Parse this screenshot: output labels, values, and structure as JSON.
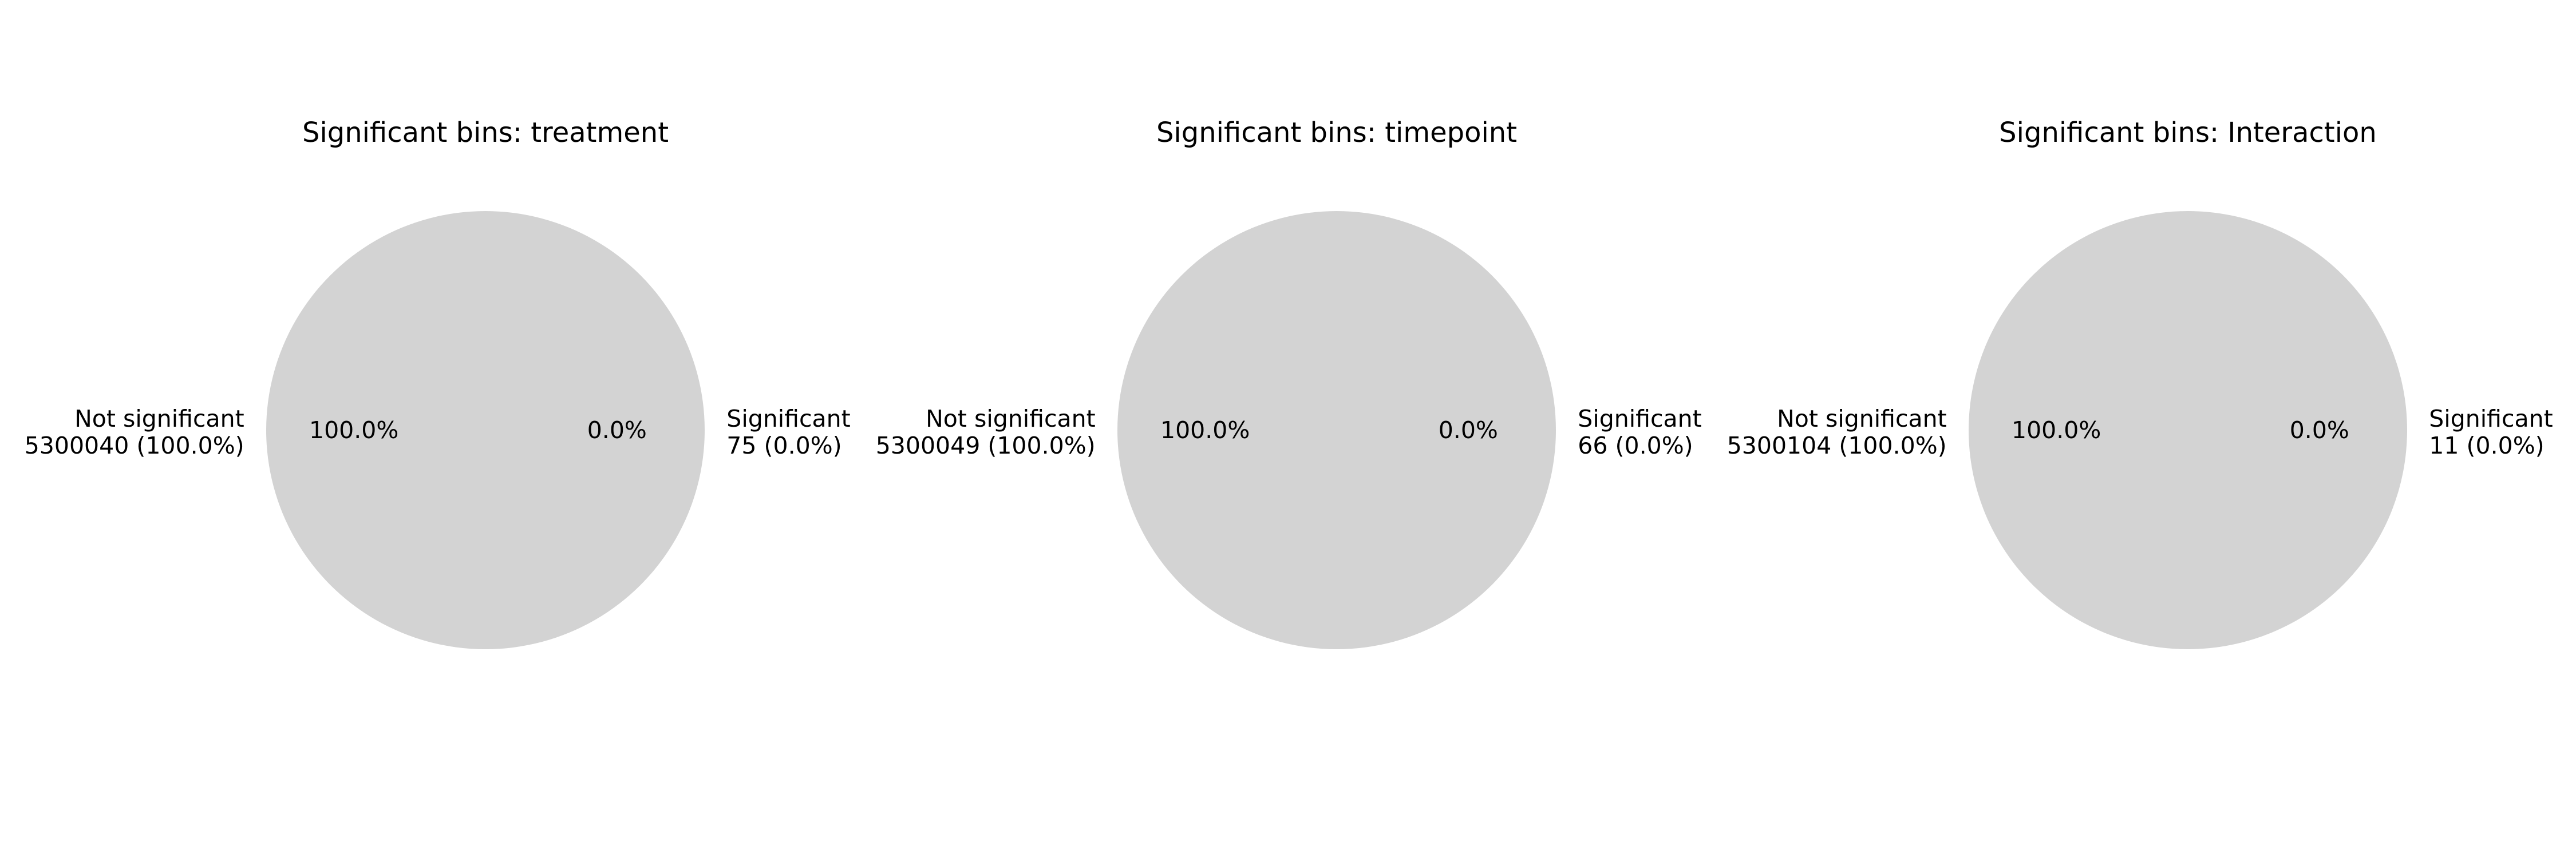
{
  "chart_data": [
    {
      "type": "pie",
      "title": "Significant bins: treatment",
      "slices": [
        {
          "name": "Not significant",
          "value": 5300040,
          "label_value": "5300040 (100.0%)",
          "autopct": "100.0%",
          "color": "#d3d3d3"
        },
        {
          "name": "Significant",
          "value": 75,
          "label_value": "75 (0.0%)",
          "autopct": "0.0%",
          "color": "#d3d3d3"
        }
      ]
    },
    {
      "type": "pie",
      "title": "Significant bins: timepoint",
      "slices": [
        {
          "name": "Not significant",
          "value": 5300049,
          "label_value": "5300049 (100.0%)",
          "autopct": "100.0%",
          "color": "#d3d3d3"
        },
        {
          "name": "Significant",
          "value": 66,
          "label_value": "66 (0.0%)",
          "autopct": "0.0%",
          "color": "#d3d3d3"
        }
      ]
    },
    {
      "type": "pie",
      "title": "Significant bins: Interaction",
      "slices": [
        {
          "name": "Not significant",
          "value": 5300104,
          "label_value": "5300104 (100.0%)",
          "autopct": "100.0%",
          "color": "#d3d3d3"
        },
        {
          "name": "Significant",
          "value": 11,
          "label_value": "11 (0.0%)",
          "autopct": "0.0%",
          "color": "#d3d3d3"
        }
      ]
    }
  ]
}
